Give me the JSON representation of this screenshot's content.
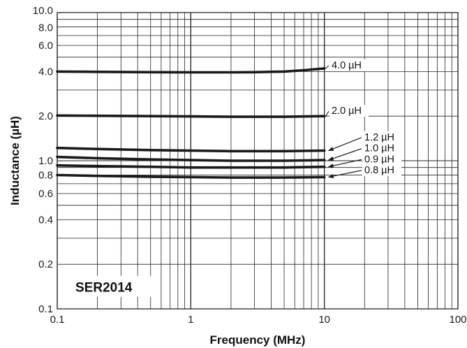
{
  "chart_data": {
    "type": "line",
    "title": "",
    "xlabel": "Frequency (MHz)",
    "ylabel": "Inductance (µH)",
    "x_scale": "log",
    "y_scale": "log",
    "xlim": [
      0.1,
      100
    ],
    "ylim": [
      0.1,
      10
    ],
    "grid": true,
    "x_tick_labels": [
      {
        "value": 0.1,
        "label": "0.1"
      },
      {
        "value": 1,
        "label": "1"
      },
      {
        "value": 10,
        "label": "10"
      },
      {
        "value": 100,
        "label": "100"
      }
    ],
    "y_tick_labels": [
      {
        "value": 0.1,
        "label": "0.1"
      },
      {
        "value": 0.2,
        "label": "0.2"
      },
      {
        "value": 0.4,
        "label": "0.4"
      },
      {
        "value": 0.6,
        "label": "0.6"
      },
      {
        "value": 0.8,
        "label": "0.8"
      },
      {
        "value": 1.0,
        "label": "1.0"
      },
      {
        "value": 2.0,
        "label": "2.0"
      },
      {
        "value": 4.0,
        "label": "4.0"
      },
      {
        "value": 6.0,
        "label": "6.0"
      },
      {
        "value": 8.0,
        "label": "8.0"
      },
      {
        "value": 10.0,
        "label": "10.0"
      }
    ],
    "series": [
      {
        "name": "4.0 µH",
        "x": [
          0.1,
          0.2,
          0.5,
          1,
          2,
          3,
          5,
          7,
          10
        ],
        "y": [
          4.0,
          3.98,
          3.96,
          3.95,
          3.95,
          3.96,
          4.0,
          4.08,
          4.2
        ]
      },
      {
        "name": "2.0 µH",
        "x": [
          0.1,
          0.2,
          0.5,
          1,
          2,
          5,
          10
        ],
        "y": [
          2.02,
          2.01,
          2.0,
          1.99,
          1.98,
          1.98,
          2.0
        ]
      },
      {
        "name": "1.2 µH",
        "x": [
          0.1,
          0.2,
          0.5,
          1,
          2,
          5,
          10
        ],
        "y": [
          1.22,
          1.2,
          1.18,
          1.17,
          1.16,
          1.16,
          1.17
        ]
      },
      {
        "name": "1.0 µH",
        "x": [
          0.1,
          0.2,
          0.5,
          1,
          2,
          5,
          10
        ],
        "y": [
          1.06,
          1.04,
          1.02,
          1.01,
          1.0,
          1.0,
          1.01
        ]
      },
      {
        "name": "0.9 µH",
        "x": [
          0.1,
          0.2,
          0.5,
          1,
          2,
          5,
          10
        ],
        "y": [
          0.93,
          0.92,
          0.91,
          0.9,
          0.9,
          0.9,
          0.91
        ]
      },
      {
        "name": "0.8 µH",
        "x": [
          0.1,
          0.2,
          0.5,
          1,
          2,
          5,
          10
        ],
        "y": [
          0.8,
          0.79,
          0.78,
          0.775,
          0.77,
          0.77,
          0.775
        ]
      }
    ],
    "annotations": [
      {
        "text": "SER2014"
      }
    ],
    "colors": {
      "line": "#1a1a1a",
      "grid": "#222222",
      "background": "#ffffff"
    }
  }
}
